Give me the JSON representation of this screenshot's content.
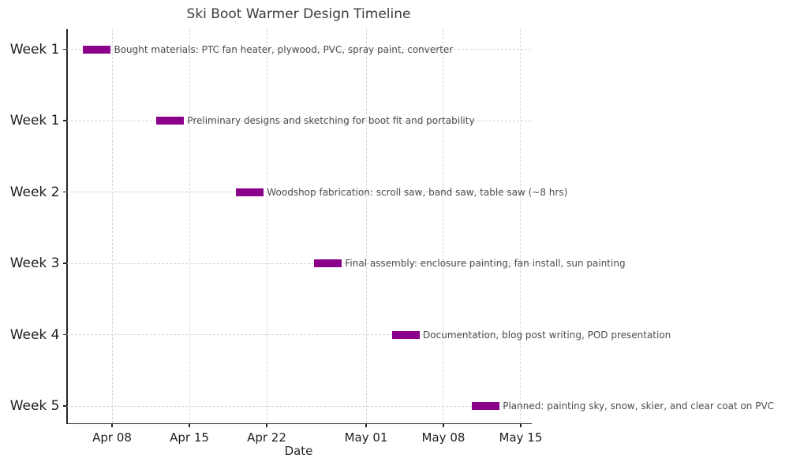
{
  "chart_data": {
    "type": "bar",
    "variant": "gantt-timeline",
    "title": "Ski Boot Warmer Design Timeline",
    "xlabel": "Date",
    "ylabel": "",
    "grid": "dashed, both axes",
    "legend": "none",
    "bar_color": "#8B008B",
    "day_index_note": "numeric day values: 1 = Apr 01, 31 = May 01",
    "x_domain": [
      3.89,
      45.93
    ],
    "x_ticks": [
      {
        "label": "Apr 08",
        "day": 8
      },
      {
        "label": "Apr 15",
        "day": 15
      },
      {
        "label": "Apr 22",
        "day": 22
      },
      {
        "label": "May 01",
        "day": 31
      },
      {
        "label": "May 08",
        "day": 38
      },
      {
        "label": "May 15",
        "day": 45
      }
    ],
    "tasks": [
      {
        "row_label": "Week 1",
        "annotation": "Bought materials: PTC fan heater, plywood, PVC, spray paint, converter",
        "start_day": 5.36,
        "end_day": 7.89,
        "approx_start": "Apr 05",
        "approx_end": "Apr 08",
        "duration_days": 2.5
      },
      {
        "row_label": "Week 1",
        "annotation": "Preliminary designs and sketching for boot fit and portability",
        "start_day": 12.02,
        "end_day": 14.52,
        "approx_start": "Apr 12",
        "approx_end": "Apr 14",
        "duration_days": 2.5
      },
      {
        "row_label": "Week 2",
        "annotation": "Woodshop fabrication: scroll saw, band saw, table saw (~8 hrs)",
        "start_day": 19.24,
        "end_day": 21.74,
        "approx_start": "Apr 19",
        "approx_end": "Apr 22",
        "duration_days": 2.5
      },
      {
        "row_label": "Week 3",
        "annotation": "Final assembly: enclosure painting, fan install, sun painting",
        "start_day": 26.31,
        "end_day": 28.81,
        "approx_start": "Apr 26",
        "approx_end": "Apr 29",
        "duration_days": 2.5
      },
      {
        "row_label": "Week 4",
        "annotation": "Documentation, blog post writing, POD presentation",
        "start_day": 33.36,
        "end_day": 35.86,
        "approx_start": "May 03",
        "approx_end": "May 06",
        "duration_days": 2.5
      },
      {
        "row_label": "Week 5",
        "annotation": "Planned: painting sky, snow, skier, and clear coat on PVC",
        "start_day": 40.59,
        "end_day": 43.09,
        "approx_start": "May 11",
        "approx_end": "May 13",
        "duration_days": 2.5
      }
    ]
  }
}
